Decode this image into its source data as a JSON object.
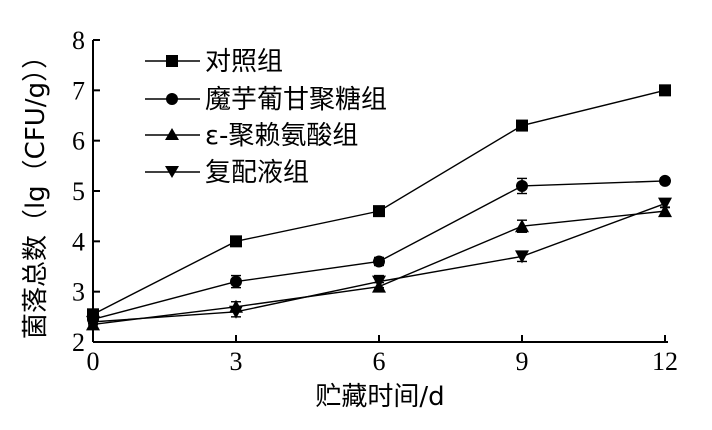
{
  "chart_data": {
    "type": "line",
    "title": "",
    "xlabel": "贮藏时间/d",
    "ylabel": "菌落总数（lg（CFU/g））",
    "x": [
      0,
      3,
      6,
      9,
      12
    ],
    "xlim": [
      0,
      12
    ],
    "ylim": [
      2,
      8
    ],
    "xticks": [
      "0",
      "3",
      "6",
      "9",
      "12"
    ],
    "yticks": [
      "2",
      "3",
      "4",
      "5",
      "6",
      "7",
      "8"
    ],
    "grid": false,
    "legend_position": "top-left",
    "series": [
      {
        "name": "对照组",
        "marker": "square",
        "values": [
          2.55,
          4.0,
          4.6,
          6.3,
          7.0
        ],
        "errors": [
          0.08,
          0.05,
          0.05,
          0.05,
          0.1
        ]
      },
      {
        "name": "魔芋葡甘聚糖组",
        "marker": "circle",
        "values": [
          2.45,
          3.2,
          3.6,
          5.1,
          5.2
        ],
        "errors": [
          0.08,
          0.12,
          0.08,
          0.15,
          0.06
        ]
      },
      {
        "name": "ε-聚赖氨酸组",
        "marker": "triangle-up",
        "values": [
          2.35,
          2.7,
          3.1,
          4.3,
          4.6
        ],
        "errors": [
          0.06,
          0.1,
          0.08,
          0.12,
          0.08
        ]
      },
      {
        "name": "复配液组",
        "marker": "triangle-down",
        "values": [
          2.4,
          2.6,
          3.2,
          3.7,
          4.75
        ],
        "errors": [
          0.06,
          0.1,
          0.12,
          0.1,
          0.08
        ]
      }
    ],
    "colors": {
      "line": "#000000",
      "marker": "#000000",
      "axis": "#000000"
    }
  }
}
